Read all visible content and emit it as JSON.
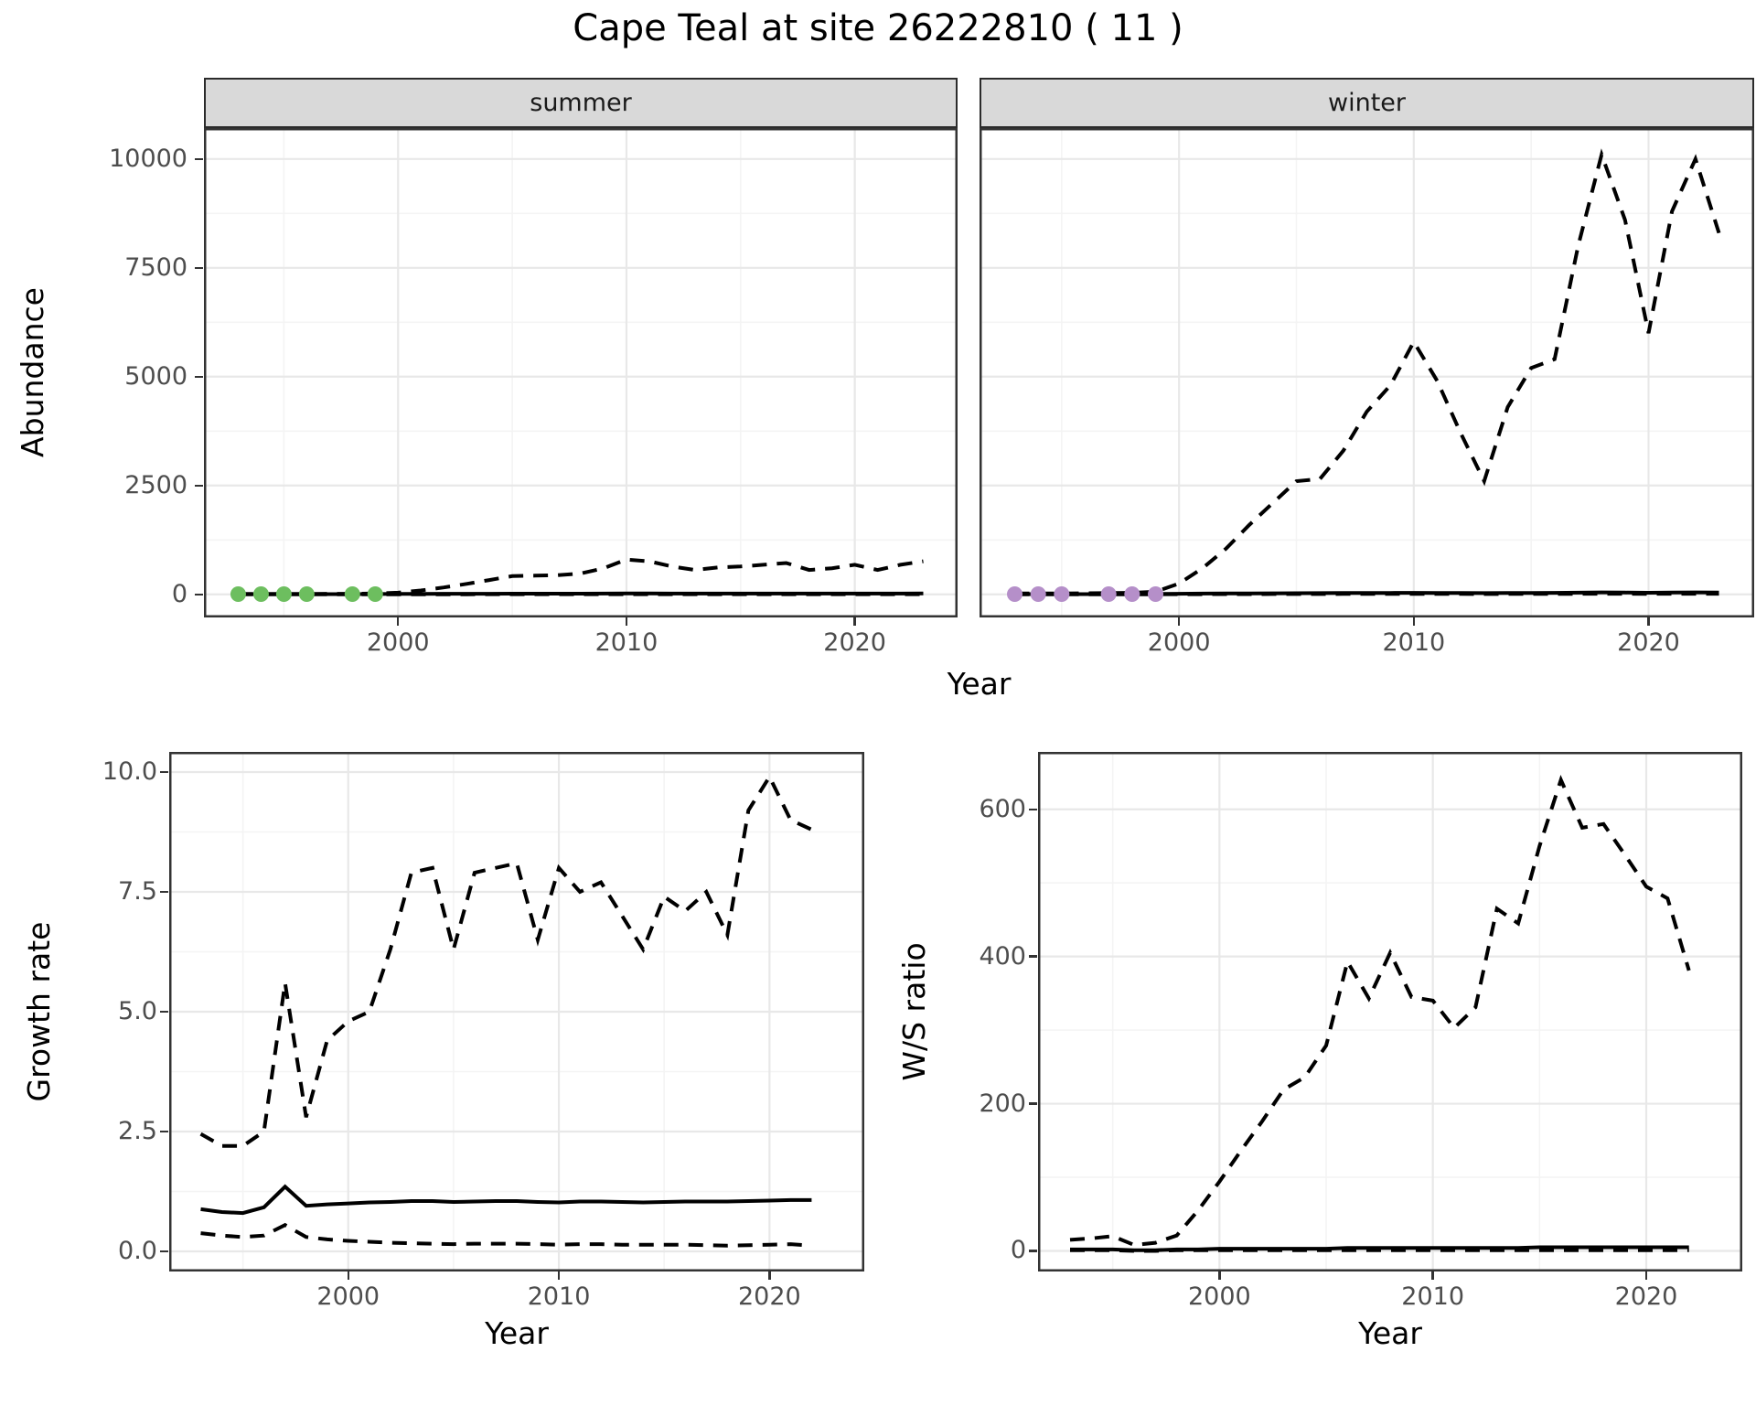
{
  "title": "Cape Teal at site 26222810 ( 11 )",
  "colors": {
    "summer_points": "#6dbe5f",
    "winter_points": "#b58fc9",
    "strip_bg": "#d9d9d9",
    "panel_border": "#333333",
    "grid_major": "#e8e8e8",
    "grid_minor": "#f4f4f4",
    "line": "#000000",
    "axis_text": "#4d4d4d",
    "title_text": "#000000"
  },
  "axes": {
    "abundance_y_title": "Abundance",
    "growth_y_title": "Growth rate",
    "ws_y_title": "W/S ratio",
    "top_x_title": "Year",
    "bottom_left_x_title": "Year",
    "bottom_right_x_title": "Year"
  },
  "chart_data": [
    {
      "id": "abundance-summer",
      "type": "line",
      "facet_label": "summer",
      "x_domain": [
        1991.5,
        2024.5
      ],
      "y_domain": [
        -530,
        10710
      ],
      "x_ticks": [
        {
          "v": 2000,
          "label": "2000"
        },
        {
          "v": 2010,
          "label": "2010"
        },
        {
          "v": 2020,
          "label": "2020"
        }
      ],
      "x_minor": [
        1995,
        2005,
        2015
      ],
      "y_ticks": [
        {
          "v": 0,
          "label": "0"
        },
        {
          "v": 2500,
          "label": "2500"
        },
        {
          "v": 5000,
          "label": "5000"
        },
        {
          "v": 7500,
          "label": "7500"
        },
        {
          "v": 10000,
          "label": "10000"
        }
      ],
      "y_minor": [
        1250,
        3750,
        6250,
        8750
      ],
      "years": [
        1993,
        1994,
        1995,
        1996,
        1997,
        1998,
        1999,
        2000,
        2001,
        2002,
        2003,
        2004,
        2005,
        2006,
        2007,
        2008,
        2009,
        2010,
        2011,
        2012,
        2013,
        2014,
        2015,
        2016,
        2017,
        2018,
        2019,
        2020,
        2021,
        2022,
        2023
      ],
      "series": [
        {
          "name": "upper_ci",
          "style": "dashed",
          "values": [
            10,
            10,
            10,
            10,
            15,
            15,
            20,
            40,
            90,
            160,
            240,
            330,
            420,
            430,
            440,
            480,
            600,
            800,
            760,
            640,
            560,
            620,
            640,
            680,
            720,
            560,
            600,
            680,
            560,
            680,
            760
          ]
        },
        {
          "name": "estimate",
          "style": "solid",
          "values": [
            5,
            5,
            5,
            5,
            5,
            5,
            8,
            10,
            12,
            14,
            15,
            15,
            16,
            16,
            16,
            17,
            18,
            20,
            20,
            19,
            18,
            18,
            18,
            19,
            19,
            18,
            18,
            19,
            18,
            19,
            20
          ]
        },
        {
          "name": "lower_ci",
          "style": "dashed",
          "values": [
            1,
            1,
            1,
            1,
            1,
            1,
            1,
            1,
            2,
            2,
            2,
            3,
            3,
            3,
            3,
            3,
            4,
            4,
            4,
            4,
            3,
            3,
            3,
            4,
            4,
            3,
            3,
            4,
            3,
            4,
            4
          ]
        }
      ],
      "points": {
        "name": "observed-counts",
        "color": "#6dbe5f",
        "years": [
          1993,
          1994,
          1995,
          1996,
          1998,
          1999
        ],
        "values": [
          5,
          5,
          5,
          5,
          5,
          5
        ]
      }
    },
    {
      "id": "abundance-winter",
      "type": "line",
      "facet_label": "winter",
      "x_domain": [
        1991.5,
        2024.5
      ],
      "y_domain": [
        -530,
        10710
      ],
      "x_ticks": [
        {
          "v": 2000,
          "label": "2000"
        },
        {
          "v": 2010,
          "label": "2010"
        },
        {
          "v": 2020,
          "label": "2020"
        }
      ],
      "x_minor": [
        1995,
        2005,
        2015
      ],
      "y_ticks": [
        {
          "v": 0,
          "label": "0"
        },
        {
          "v": 2500,
          "label": "2500"
        },
        {
          "v": 5000,
          "label": "5000"
        },
        {
          "v": 7500,
          "label": "7500"
        },
        {
          "v": 10000,
          "label": "10000"
        }
      ],
      "y_minor": [
        1250,
        3750,
        6250,
        8750
      ],
      "years": [
        1993,
        1994,
        1995,
        1996,
        1997,
        1998,
        1999,
        2000,
        2001,
        2002,
        2003,
        2004,
        2005,
        2006,
        2007,
        2008,
        2009,
        2010,
        2011,
        2012,
        2013,
        2014,
        2015,
        2016,
        2017,
        2018,
        2019,
        2020,
        2021,
        2022,
        2023
      ],
      "series": [
        {
          "name": "upper_ci",
          "style": "dashed",
          "values": [
            20,
            20,
            20,
            25,
            30,
            35,
            60,
            250,
            600,
            1050,
            1600,
            2100,
            2600,
            2650,
            3300,
            4200,
            4800,
            5800,
            4900,
            3700,
            2600,
            4300,
            5200,
            5400,
            8000,
            10100,
            8600,
            6000,
            8800,
            10000,
            8300
          ]
        },
        {
          "name": "estimate",
          "style": "solid",
          "values": [
            5,
            5,
            5,
            6,
            7,
            8,
            10,
            15,
            18,
            20,
            22,
            25,
            27,
            28,
            30,
            32,
            33,
            35,
            33,
            30,
            28,
            32,
            34,
            35,
            40,
            45,
            42,
            38,
            42,
            45,
            42
          ]
        },
        {
          "name": "lower_ci",
          "style": "dashed",
          "values": [
            1,
            1,
            1,
            1,
            1,
            2,
            2,
            3,
            4,
            5,
            6,
            7,
            8,
            8,
            9,
            10,
            10,
            11,
            10,
            9,
            8,
            10,
            11,
            11,
            13,
            15,
            14,
            12,
            14,
            15,
            14
          ]
        }
      ],
      "points": {
        "name": "observed-counts",
        "color": "#b58fc9",
        "years": [
          1993,
          1994,
          1995,
          1997,
          1998,
          1999
        ],
        "values": [
          5,
          5,
          5,
          5,
          5,
          5
        ]
      }
    },
    {
      "id": "growth-rate",
      "type": "line",
      "facet_label": "",
      "x_domain": [
        1991.5,
        2024.5
      ],
      "y_domain": [
        -0.42,
        10.42
      ],
      "x_ticks": [
        {
          "v": 2000,
          "label": "2000"
        },
        {
          "v": 2010,
          "label": "2010"
        },
        {
          "v": 2020,
          "label": "2020"
        }
      ],
      "x_minor": [
        1995,
        2005,
        2015
      ],
      "y_ticks": [
        {
          "v": 0,
          "label": "0.0"
        },
        {
          "v": 2.5,
          "label": "2.5"
        },
        {
          "v": 5,
          "label": "5.0"
        },
        {
          "v": 7.5,
          "label": "7.5"
        },
        {
          "v": 10,
          "label": "10.0"
        }
      ],
      "y_minor": [
        1.25,
        3.75,
        6.25,
        8.75
      ],
      "years": [
        1993,
        1994,
        1995,
        1996,
        1997,
        1998,
        1999,
        2000,
        2001,
        2002,
        2003,
        2004,
        2005,
        2006,
        2007,
        2008,
        2009,
        2010,
        2011,
        2012,
        2013,
        2014,
        2015,
        2016,
        2017,
        2018,
        2019,
        2020,
        2021,
        2022
      ],
      "series": [
        {
          "name": "upper_ci",
          "style": "dashed",
          "values": [
            2.45,
            2.2,
            2.2,
            2.5,
            5.6,
            2.8,
            4.4,
            4.8,
            5.0,
            6.3,
            7.9,
            8.0,
            6.3,
            7.9,
            8.0,
            8.1,
            6.5,
            8.0,
            7.5,
            7.7,
            7.0,
            6.3,
            7.4,
            7.1,
            7.5,
            6.6,
            9.2,
            9.9,
            9.0,
            8.8
          ]
        },
        {
          "name": "estimate",
          "style": "solid",
          "values": [
            0.88,
            0.82,
            0.8,
            0.92,
            1.35,
            0.95,
            0.98,
            1.0,
            1.02,
            1.03,
            1.05,
            1.05,
            1.03,
            1.04,
            1.05,
            1.05,
            1.03,
            1.02,
            1.04,
            1.04,
            1.03,
            1.02,
            1.03,
            1.04,
            1.04,
            1.04,
            1.05,
            1.06,
            1.07,
            1.07
          ]
        },
        {
          "name": "lower_ci",
          "style": "dashed",
          "values": [
            0.38,
            0.33,
            0.3,
            0.33,
            0.55,
            0.3,
            0.25,
            0.22,
            0.2,
            0.18,
            0.17,
            0.16,
            0.15,
            0.16,
            0.16,
            0.16,
            0.15,
            0.14,
            0.15,
            0.15,
            0.14,
            0.14,
            0.14,
            0.14,
            0.13,
            0.12,
            0.13,
            0.14,
            0.15,
            0.12
          ]
        }
      ],
      "points": null
    },
    {
      "id": "ws-ratio",
      "type": "line",
      "facet_label": "",
      "x_domain": [
        1991.5,
        2024.5
      ],
      "y_domain": [
        -28,
        678
      ],
      "x_ticks": [
        {
          "v": 2000,
          "label": "2000"
        },
        {
          "v": 2010,
          "label": "2010"
        },
        {
          "v": 2020,
          "label": "2020"
        }
      ],
      "x_minor": [
        1995,
        2005,
        2015
      ],
      "y_ticks": [
        {
          "v": 0,
          "label": "0"
        },
        {
          "v": 200,
          "label": "200"
        },
        {
          "v": 400,
          "label": "400"
        },
        {
          "v": 600,
          "label": "600"
        }
      ],
      "y_minor": [
        100,
        300,
        500
      ],
      "years": [
        1993,
        1994,
        1995,
        1996,
        1997,
        1998,
        1999,
        2000,
        2001,
        2002,
        2003,
        2004,
        2005,
        2006,
        2007,
        2008,
        2009,
        2010,
        2011,
        2012,
        2013,
        2014,
        2015,
        2016,
        2017,
        2018,
        2019,
        2020,
        2021,
        2022
      ],
      "series": [
        {
          "name": "upper_ci",
          "style": "dashed",
          "values": [
            15,
            17,
            20,
            8,
            11,
            21,
            55,
            94,
            136,
            176,
            219,
            236,
            279,
            393,
            343,
            405,
            345,
            340,
            303,
            331,
            465,
            445,
            550,
            640,
            575,
            580,
            538,
            495,
            479,
            381
          ]
        },
        {
          "name": "estimate",
          "style": "solid",
          "values": [
            2,
            2,
            2,
            1,
            1,
            2,
            2,
            3,
            3,
            3,
            3,
            3,
            3,
            4,
            4,
            4,
            4,
            4,
            4,
            4,
            4,
            4,
            5,
            5,
            5,
            5,
            5,
            5,
            5,
            5
          ]
        },
        {
          "name": "lower_ci",
          "style": "dashed",
          "values": [
            1,
            1,
            1,
            0,
            0,
            1,
            1,
            1,
            1,
            1,
            1,
            1,
            1,
            1,
            1,
            1,
            1,
            1,
            1,
            1,
            1,
            1,
            1,
            1,
            1,
            1,
            1,
            1,
            1,
            1
          ]
        }
      ],
      "points": null
    }
  ]
}
